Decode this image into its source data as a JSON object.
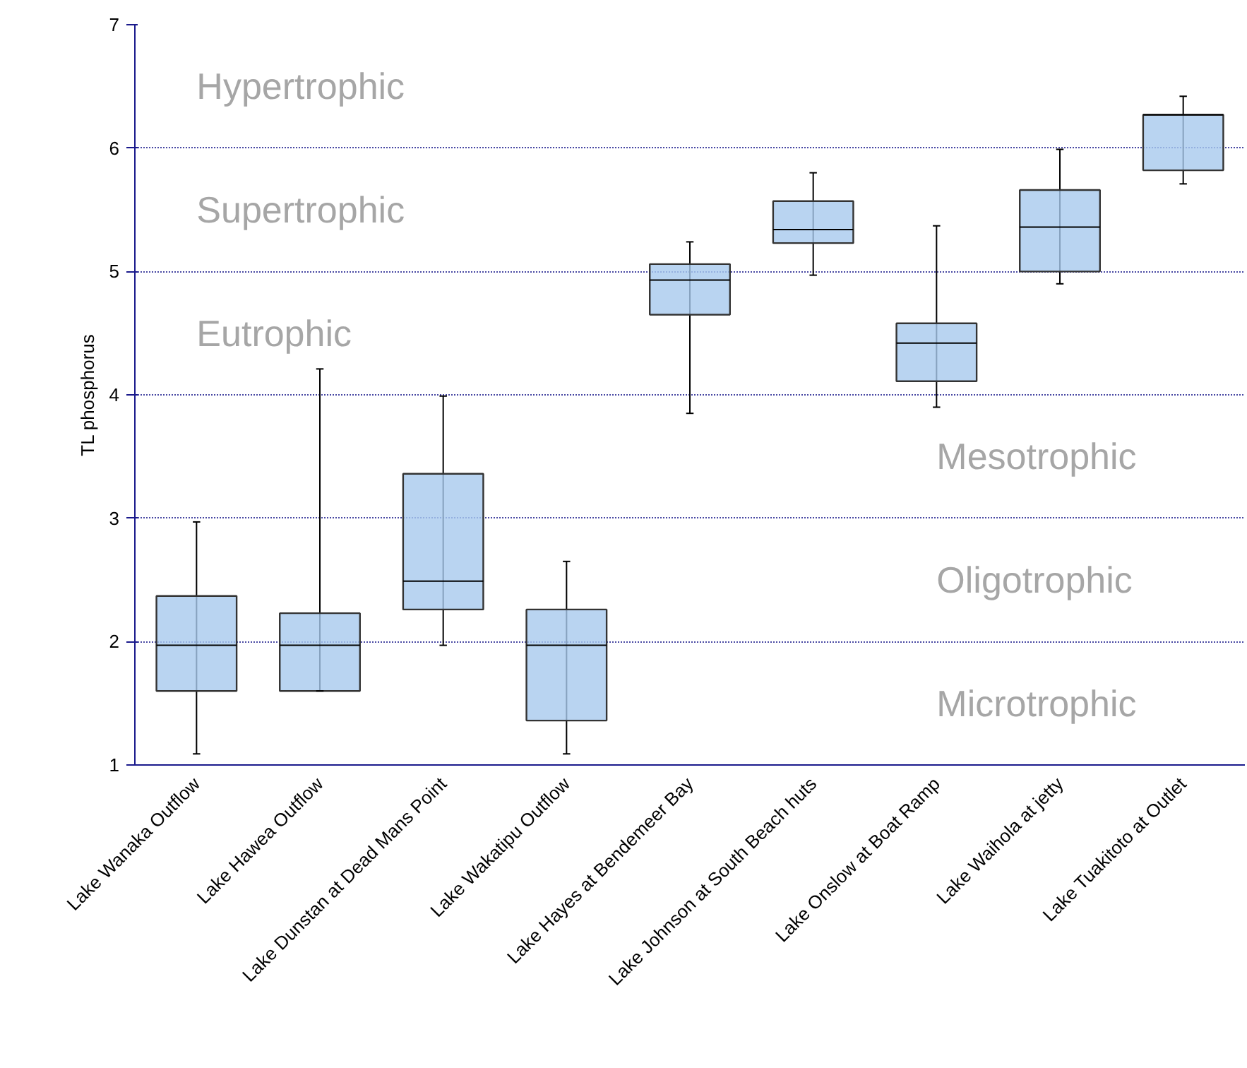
{
  "chart_data": {
    "type": "box",
    "ylabel": "TL phosphorus",
    "categories": [
      "Lake Wanaka Outflow",
      "Lake Hawea Outflow",
      "Lake Dunstan at Dead Mans Point",
      "Lake Wakatipu Outflow",
      "Lake Hayes at Bendemeer Bay",
      "Lake Johnson at South Beach huts",
      "Lake Onslow at Boat Ramp",
      "Lake Waihola at jetty",
      "Lake Tuakitoto at Outlet"
    ],
    "series": [
      {
        "color": "#a7c9ee",
        "boxes": [
          {
            "low": 1.09,
            "q1": 1.6,
            "median": 1.97,
            "q3": 2.37,
            "high": 2.97
          },
          {
            "low": 1.6,
            "q1": 1.6,
            "median": 1.97,
            "q3": 2.23,
            "high": 4.21
          },
          {
            "low": 1.97,
            "q1": 2.26,
            "median": 2.49,
            "q3": 3.36,
            "high": 3.99
          },
          {
            "low": 1.09,
            "q1": 1.36,
            "median": 1.97,
            "q3": 2.26,
            "high": 2.65
          },
          {
            "low": 3.85,
            "q1": 4.65,
            "median": 4.93,
            "q3": 5.06,
            "high": 5.24
          },
          {
            "low": 4.97,
            "q1": 5.23,
            "median": 5.34,
            "q3": 5.57,
            "high": 5.8
          },
          {
            "low": 3.9,
            "q1": 4.11,
            "median": 4.42,
            "q3": 4.58,
            "high": 5.37
          },
          {
            "low": 4.9,
            "q1": 5.0,
            "median": 5.36,
            "q3": 5.66,
            "high": 5.99
          },
          {
            "low": 5.71,
            "q1": 5.82,
            "median": 6.27,
            "q3": 6.27,
            "high": 6.42
          }
        ]
      }
    ],
    "ylim": [
      1,
      7
    ],
    "yticks": [
      1,
      2,
      3,
      4,
      5,
      6,
      7
    ],
    "grid": "y",
    "annotations": [
      "Hypertrophic",
      "Supertrophic",
      "Eutrophic",
      "Mesotrophic",
      "Oligotrophic",
      "Microtrophic"
    ]
  }
}
